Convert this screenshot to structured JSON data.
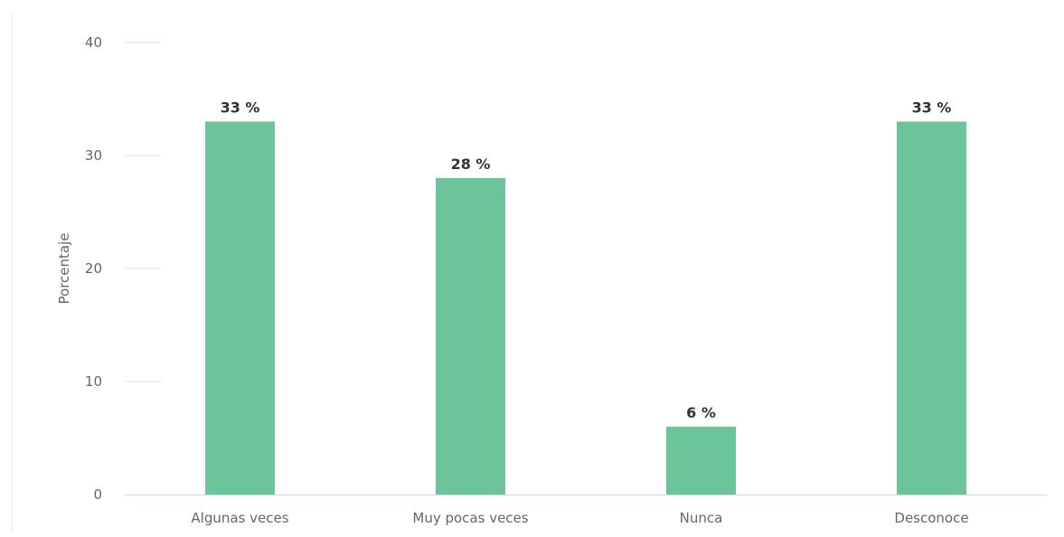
{
  "chart_data": {
    "type": "bar",
    "title": "",
    "xlabel": "",
    "ylabel": "Porcentaje",
    "ylim": [
      0,
      40
    ],
    "yticks": [
      0,
      10,
      20,
      30,
      40
    ],
    "categories": [
      "Algunas veces",
      "Muy pocas veces",
      "Nunca",
      "Desconoce"
    ],
    "values": [
      33,
      28,
      6,
      33
    ],
    "data_labels": [
      "33 %",
      "28 %",
      "6 %",
      "33 %"
    ],
    "bar_color": "#6cc49a",
    "grid": "horizontal",
    "legend": "none"
  }
}
